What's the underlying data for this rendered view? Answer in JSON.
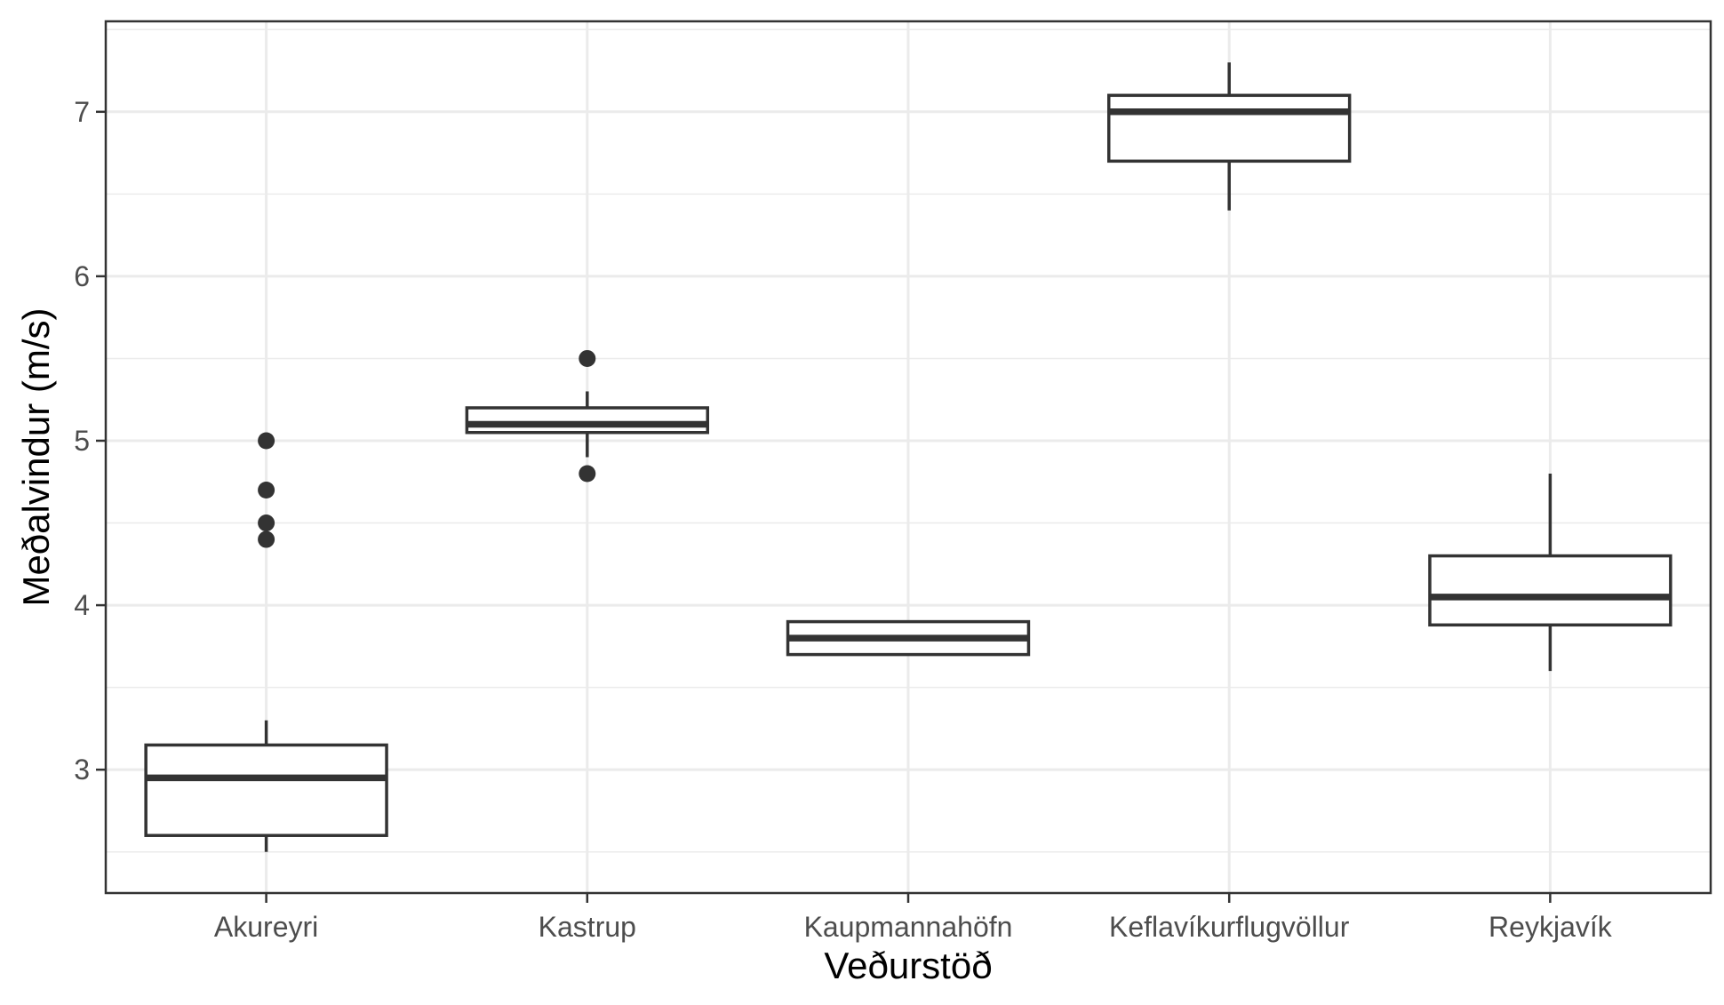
{
  "chart_data": {
    "type": "boxplot",
    "xlabel": "Veðurstöð",
    "ylabel": "Meðalvindur (m/s)",
    "categories": [
      "Akureyri",
      "Kastrup",
      "Kaupmannahöfn",
      "Keflavíkurflugvöllur",
      "Reykjavík"
    ],
    "ylim": [
      2.25,
      7.55
    ],
    "y_ticks": [
      3,
      4,
      5,
      6,
      7
    ],
    "y_tick_labels": [
      "3",
      "4",
      "5",
      "6",
      "7"
    ],
    "grid": true,
    "boxes": [
      {
        "category": "Akureyri",
        "whisker_low": 2.5,
        "q1": 2.6,
        "median": 2.95,
        "q3": 3.15,
        "whisker_high": 3.3,
        "outliers": [
          4.4,
          4.5,
          4.7,
          5.0
        ]
      },
      {
        "category": "Kastrup",
        "whisker_low": 4.9,
        "q1": 5.05,
        "median": 5.1,
        "q3": 5.2,
        "whisker_high": 5.3,
        "outliers": [
          4.8,
          5.5
        ]
      },
      {
        "category": "Kaupmannahöfn",
        "whisker_low": 3.7,
        "q1": 3.7,
        "median": 3.8,
        "q3": 3.9,
        "whisker_high": 3.9,
        "outliers": []
      },
      {
        "category": "Keflavíkurflugvöllur",
        "whisker_low": 6.4,
        "q1": 6.7,
        "median": 7.0,
        "q3": 7.1,
        "whisker_high": 7.3,
        "outliers": []
      },
      {
        "category": "Reykjavík",
        "whisker_low": 3.6,
        "q1": 3.88,
        "median": 4.05,
        "q3": 4.3,
        "whisker_high": 4.8,
        "outliers": []
      }
    ],
    "colors": {
      "box_line": "#333333",
      "panel_border": "#333333",
      "grid": "#ebebeb",
      "tick_text": "#4d4d4d"
    }
  }
}
